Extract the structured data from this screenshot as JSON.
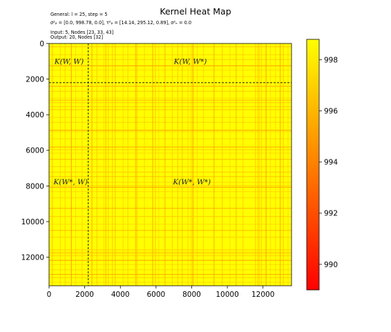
{
  "chart_data": {
    "type": "heatmap",
    "title": "Kernel Heat Map",
    "info_lines": {
      "general": "General: l = 25, step = 5",
      "sigma": "σ²ᵦ = [0.0, 998.78, 0.0], τ²ᵦ = [14.14, 295.12, 0.89], σ²ₑ = 0.0",
      "input": "Input: 5, Nodes [23, 33, 43]",
      "output": "Output: 20, Nodes [32]"
    },
    "x_ticks": [
      0,
      2000,
      4000,
      6000,
      8000,
      10000,
      12000
    ],
    "y_ticks": [
      0,
      2000,
      4000,
      6000,
      8000,
      10000,
      12000
    ],
    "x_range": [
      0,
      13600
    ],
    "y_range": [
      0,
      13600
    ],
    "y_inverted": true,
    "split_at": 2200,
    "block_labels": [
      {
        "id": "k-w-w",
        "text": "K(W, W)",
        "x": 300,
        "y": 1150
      },
      {
        "id": "k-w-wstar",
        "text": "K(W, W*)",
        "x": 7000,
        "y": 1150
      },
      {
        "id": "k-wstar-w",
        "text": "K(W*, W)",
        "x": 250,
        "y": 7900
      },
      {
        "id": "k-wstar-wstar",
        "text": "K(W*, W*)",
        "x": 6950,
        "y": 7900
      }
    ],
    "value_range": [
      989,
      998.8
    ],
    "typical_value": 998.5,
    "colorbar": {
      "ticks": [
        990,
        992,
        994,
        996,
        998
      ],
      "colormap": "autumn",
      "colors": {
        "low": "#ff0000",
        "high": "#ffff00"
      }
    },
    "stripe_positions": [
      160,
      610,
      880,
      1230,
      1470,
      1830,
      2380,
      2660,
      3050,
      3160,
      3300,
      3530,
      3690,
      4130,
      4400,
      4850,
      4930,
      5330,
      5790,
      5940,
      6130,
      6480,
      6890,
      7200,
      7450,
      7770,
      7960,
      8050,
      8290,
      8640,
      9230,
      9690,
      10120,
      10470,
      10850,
      11560,
      11700,
      11780,
      11890,
      12150,
      12390,
      12680,
      12940,
      13120,
      13380
    ]
  }
}
